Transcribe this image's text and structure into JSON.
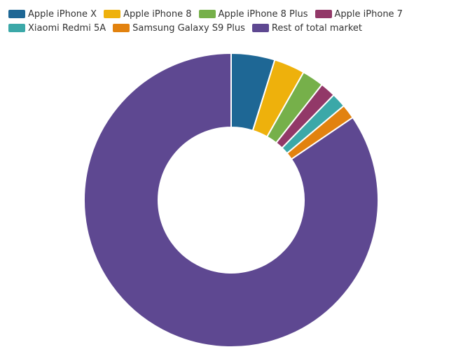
{
  "chart_data": {
    "type": "pie",
    "donut": true,
    "title": "",
    "legend_position": "top-left",
    "categories": [
      "Apple iPhone X",
      "Apple iPhone 8",
      "Apple iPhone 8 Plus",
      "Apple iPhone 7",
      "Xiaomi Redmi 5A",
      "Samsung Galaxy S9 Plus",
      "Rest of total market"
    ],
    "values": [
      4.8,
      3.4,
      2.4,
      1.7,
      1.6,
      1.6,
      84.5
    ],
    "colors": [
      "#1e6795",
      "#eeb10c",
      "#76b04a",
      "#923868",
      "#3ba8a8",
      "#e2820f",
      "#5e4891"
    ]
  }
}
